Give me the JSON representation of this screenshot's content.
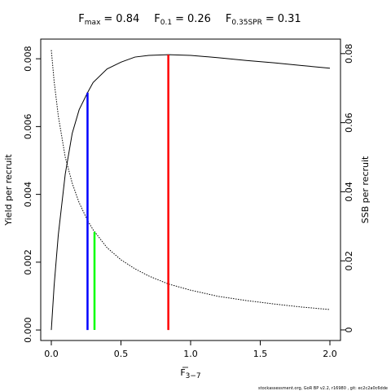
{
  "chart_data": {
    "type": "line",
    "reference_lines": [
      {
        "symbol": "F",
        "subscript": "max",
        "relation": "=",
        "x": 0.84,
        "top": 0.00812,
        "color": "#ff0000",
        "axis": "y"
      },
      {
        "symbol": "F",
        "subscript": "0.1",
        "relation": "=",
        "x": 0.26,
        "top": 0.007,
        "color": "#0000ff",
        "axis": "y"
      },
      {
        "symbol": "F",
        "subscript": "0.35SPR",
        "relation": "=",
        "x": 0.31,
        "top": 0.0284,
        "color": "#00ff00",
        "axis": "y2"
      }
    ],
    "x": [
      0,
      0.02,
      0.05,
      0.1,
      0.15,
      0.2,
      0.26,
      0.3,
      0.4,
      0.5,
      0.6,
      0.7,
      0.84,
      1.0,
      1.2,
      1.4,
      1.6,
      1.8,
      2.0
    ],
    "series": [
      {
        "name": "Yield per recruit",
        "color": "#000000",
        "axis": "y",
        "dash": "solid",
        "values": [
          0,
          0.0013,
          0.0028,
          0.0046,
          0.0058,
          0.0065,
          0.007,
          0.0073,
          0.0077,
          0.0079,
          0.00805,
          0.0081,
          0.00812,
          0.0081,
          0.00803,
          0.00795,
          0.00788,
          0.0078,
          0.00772
        ]
      },
      {
        "name": "SSB per recruit",
        "color": "#000000",
        "axis": "y2",
        "dash": "dotted",
        "values": [
          0.081,
          0.072,
          0.062,
          0.05,
          0.0425,
          0.0368,
          0.0317,
          0.029,
          0.0238,
          0.0203,
          0.0177,
          0.0156,
          0.0133,
          0.0115,
          0.0097,
          0.0085,
          0.0075,
          0.0066,
          0.0059
        ]
      }
    ],
    "xlabel": {
      "symbol": "F",
      "subscript": "3−7"
    },
    "ylabel": "Yield per recruit",
    "y2label": "SSB per recruit",
    "xlim": [
      -0.076,
      2.076
    ],
    "ylim": [
      -0.00031,
      0.00858
    ],
    "y2lim": [
      -0.00307,
      0.0842
    ],
    "xticks": [
      {
        "value": 0,
        "label": "0.0"
      },
      0.5,
      {
        "value": 1,
        "label": "1.0"
      },
      1.5,
      {
        "value": 2,
        "label": "2.0"
      }
    ],
    "yticks": [
      {
        "value": 0,
        "label": "0.000"
      },
      {
        "value": 0.002,
        "label": "0.002"
      },
      {
        "value": 0.004,
        "label": "0.004"
      },
      {
        "value": 0.006,
        "label": "0.006"
      },
      {
        "value": 0.008,
        "label": "0.008"
      }
    ],
    "y2ticks": [
      0,
      0.02,
      0.04,
      0.06,
      0.08
    ],
    "footer": "stockassessment.org, GoR BP v2.2, r16980 , git: ec2c2a0c6dde"
  }
}
